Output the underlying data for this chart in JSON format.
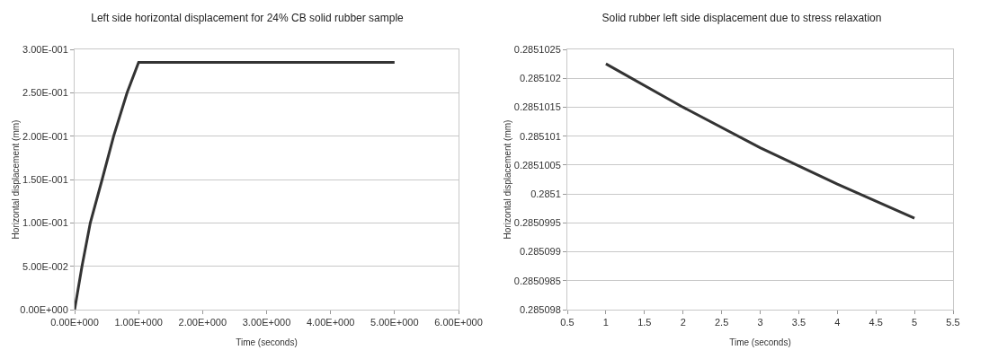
{
  "chart_data": [
    {
      "type": "line",
      "title": "Left side horizontal displacement for 24% CB solid rubber sample",
      "xlabel": "Time (seconds)",
      "ylabel": "Horizontal displacement (mm)",
      "x": [
        0,
        0.115,
        0.245,
        0.43,
        0.61,
        0.82,
        1,
        2,
        3,
        4,
        5
      ],
      "series": [
        {
          "color": "#333333",
          "values": [
            0,
            0.05,
            0.1,
            0.15,
            0.2,
            0.25,
            0.285,
            0.285,
            0.285,
            0.285,
            0.285
          ]
        }
      ],
      "xlim": [
        0,
        6
      ],
      "xticks": [
        {
          "value": 0,
          "label": "0.00E+000"
        },
        {
          "value": 1,
          "label": "1.00E+000"
        },
        {
          "value": 2,
          "label": "2.00E+000"
        },
        {
          "value": 3,
          "label": "3.00E+000"
        },
        {
          "value": 4,
          "label": "4.00E+000"
        },
        {
          "value": 5,
          "label": "5.00E+000"
        },
        {
          "value": 6,
          "label": "6.00E+000"
        }
      ],
      "ylim": [
        0,
        0.3
      ],
      "yticks": [
        {
          "value": 0,
          "label": "0.00E+000"
        },
        {
          "value": 0.05,
          "label": "5.00E-002"
        },
        {
          "value": 0.1,
          "label": "1.00E-001"
        },
        {
          "value": 0.15,
          "label": "1.50E-001"
        },
        {
          "value": 0.2,
          "label": "2.00E-001"
        },
        {
          "value": 0.25,
          "label": "2.50E-001"
        },
        {
          "value": 0.3,
          "label": "3.00E-001"
        }
      ],
      "grid": "y",
      "marker": "none",
      "line_style": "solid"
    },
    {
      "type": "line",
      "title": "Solid rubber left side displacement due to stress relaxation",
      "xlabel": "Time (seconds)",
      "ylabel": "Horizontal displacement (mm)",
      "x": [
        1,
        2,
        3,
        4,
        5
      ],
      "series": [
        {
          "color": "#333333",
          "values": [
            0.28510225,
            0.2851015,
            0.2851008,
            0.28510017,
            0.28509958
          ]
        }
      ],
      "xlim": [
        0.5,
        5.5
      ],
      "xticks": [
        0.5,
        1,
        1.5,
        2,
        2.5,
        3,
        3.5,
        4,
        4.5,
        5,
        5.5
      ],
      "ylim": [
        0.285098,
        0.2851025
      ],
      "yticks": [
        0.285098,
        0.2850985,
        0.285099,
        0.2850995,
        0.2851,
        0.2851005,
        0.285101,
        0.2851015,
        0.285102,
        0.2851025
      ],
      "grid": "y",
      "marker": "none",
      "line_style": "solid"
    }
  ]
}
